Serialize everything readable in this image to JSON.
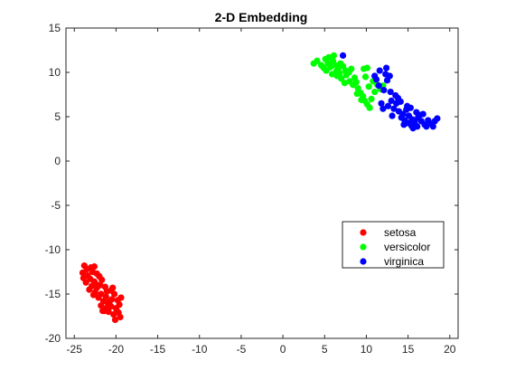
{
  "chart_data": {
    "type": "scatter",
    "title": "2-D Embedding",
    "xlabel": "",
    "ylabel": "",
    "xlim": [
      -26,
      21
    ],
    "ylim": [
      -20,
      15
    ],
    "xticks": [
      "-25",
      "-20",
      "-15",
      "-10",
      "-5",
      "0",
      "5",
      "10",
      "15",
      "20"
    ],
    "yticks": [
      "15",
      "10",
      "5",
      "0",
      "-5",
      "-10",
      "-15",
      "-20"
    ],
    "grid": false,
    "legend_position": "lower-right",
    "series": [
      {
        "name": "setosa",
        "color": "#ff0000",
        "points": [
          [
            -23.8,
            -11.8
          ],
          [
            -23.5,
            -12.2
          ],
          [
            -23.0,
            -12.0
          ],
          [
            -22.6,
            -11.9
          ],
          [
            -24.0,
            -12.6
          ],
          [
            -23.4,
            -12.9
          ],
          [
            -22.8,
            -12.5
          ],
          [
            -22.3,
            -12.7
          ],
          [
            -23.1,
            -13.3
          ],
          [
            -22.6,
            -13.6
          ],
          [
            -22.0,
            -13.0
          ],
          [
            -21.7,
            -13.4
          ],
          [
            -23.6,
            -13.7
          ],
          [
            -22.9,
            -14.1
          ],
          [
            -22.3,
            -14.3
          ],
          [
            -21.9,
            -14.0
          ],
          [
            -21.3,
            -14.2
          ],
          [
            -22.5,
            -14.8
          ],
          [
            -21.8,
            -15.0
          ],
          [
            -21.2,
            -15.3
          ],
          [
            -20.6,
            -14.6
          ],
          [
            -20.2,
            -15.0
          ],
          [
            -22.1,
            -15.4
          ],
          [
            -21.5,
            -15.8
          ],
          [
            -21.0,
            -16.0
          ],
          [
            -20.5,
            -15.6
          ],
          [
            -19.8,
            -15.7
          ],
          [
            -19.4,
            -15.4
          ],
          [
            -21.8,
            -16.3
          ],
          [
            -21.2,
            -16.6
          ],
          [
            -20.6,
            -16.4
          ],
          [
            -20.0,
            -16.6
          ],
          [
            -19.6,
            -16.2
          ],
          [
            -20.9,
            -17.0
          ],
          [
            -20.3,
            -17.3
          ],
          [
            -19.7,
            -17.1
          ],
          [
            -19.5,
            -17.6
          ],
          [
            -20.1,
            -17.9
          ],
          [
            -21.4,
            -16.9
          ],
          [
            -22.7,
            -15.1
          ],
          [
            -23.2,
            -14.5
          ],
          [
            -23.9,
            -13.2
          ],
          [
            -21.1,
            -14.7
          ],
          [
            -20.8,
            -15.9
          ],
          [
            -22.4,
            -13.9
          ],
          [
            -21.6,
            -16.9
          ],
          [
            -19.9,
            -16.9
          ],
          [
            -20.4,
            -14.3
          ]
        ]
      },
      {
        "name": "versicolor",
        "color": "#00ff00",
        "points": [
          [
            3.7,
            11.0
          ],
          [
            4.1,
            11.3
          ],
          [
            4.6,
            10.8
          ],
          [
            5.1,
            11.5
          ],
          [
            5.4,
            11.0
          ],
          [
            5.7,
            10.6
          ],
          [
            5.2,
            10.2
          ],
          [
            6.0,
            11.3
          ],
          [
            6.3,
            10.8
          ],
          [
            6.6,
            10.4
          ],
          [
            6.9,
            11.0
          ],
          [
            7.2,
            10.7
          ],
          [
            7.5,
            10.2
          ],
          [
            5.9,
            9.8
          ],
          [
            6.5,
            9.6
          ],
          [
            7.0,
            9.3
          ],
          [
            7.6,
            9.7
          ],
          [
            8.0,
            9.0
          ],
          [
            8.4,
            8.6
          ],
          [
            8.8,
            8.9
          ],
          [
            9.0,
            8.2
          ],
          [
            9.3,
            7.7
          ],
          [
            9.6,
            7.3
          ],
          [
            9.8,
            6.8
          ],
          [
            10.1,
            6.4
          ],
          [
            10.4,
            6.0
          ],
          [
            9.4,
            6.9
          ],
          [
            8.9,
            7.6
          ],
          [
            9.7,
            10.4
          ],
          [
            10.1,
            10.5
          ],
          [
            10.8,
            9.0
          ],
          [
            11.3,
            8.6
          ],
          [
            11.7,
            8.1
          ],
          [
            12.0,
            8.5
          ],
          [
            6.1,
            11.9
          ],
          [
            5.5,
            11.7
          ],
          [
            7.9,
            10.0
          ],
          [
            8.6,
            9.4
          ],
          [
            10.6,
            7.0
          ],
          [
            6.8,
            9.9
          ],
          [
            4.9,
            10.5
          ],
          [
            7.4,
            8.8
          ],
          [
            9.9,
            9.5
          ],
          [
            11.0,
            7.8
          ],
          [
            10.3,
            8.4
          ],
          [
            8.2,
            10.4
          ],
          [
            6.4,
            10.1
          ],
          [
            5.8,
            10.9
          ]
        ]
      },
      {
        "name": "virginica",
        "color": "#0000ff",
        "points": [
          [
            7.2,
            11.9
          ],
          [
            11.6,
            10.2
          ],
          [
            12.3,
            9.8
          ],
          [
            12.8,
            9.6
          ],
          [
            11.2,
            9.2
          ],
          [
            12.5,
            9.1
          ],
          [
            11.5,
            8.5
          ],
          [
            12.1,
            8.0
          ],
          [
            12.9,
            7.8
          ],
          [
            13.5,
            7.4
          ],
          [
            13.0,
            6.8
          ],
          [
            13.6,
            6.5
          ],
          [
            14.1,
            6.7
          ],
          [
            12.6,
            6.2
          ],
          [
            13.3,
            5.9
          ],
          [
            13.9,
            5.6
          ],
          [
            14.4,
            5.3
          ],
          [
            14.8,
            5.8
          ],
          [
            15.1,
            5.1
          ],
          [
            15.5,
            4.7
          ],
          [
            14.6,
            4.6
          ],
          [
            15.0,
            4.3
          ],
          [
            15.4,
            4.0
          ],
          [
            15.8,
            4.4
          ],
          [
            16.2,
            4.9
          ],
          [
            16.6,
            4.5
          ],
          [
            17.0,
            4.1
          ],
          [
            17.4,
            4.6
          ],
          [
            17.8,
            4.2
          ],
          [
            18.2,
            4.5
          ],
          [
            18.5,
            4.8
          ],
          [
            16.0,
            5.5
          ],
          [
            16.4,
            5.2
          ],
          [
            15.3,
            6.0
          ],
          [
            17.2,
            3.9
          ],
          [
            14.2,
            4.9
          ],
          [
            12.0,
            5.9
          ],
          [
            13.8,
            7.1
          ],
          [
            15.6,
            3.7
          ],
          [
            16.8,
            5.3
          ],
          [
            14.9,
            6.2
          ],
          [
            18.0,
            3.9
          ],
          [
            13.1,
            5.1
          ],
          [
            11.8,
            6.5
          ],
          [
            12.4,
            10.5
          ],
          [
            11.0,
            9.6
          ],
          [
            14.5,
            4.1
          ],
          [
            16.1,
            3.9
          ]
        ]
      }
    ]
  }
}
